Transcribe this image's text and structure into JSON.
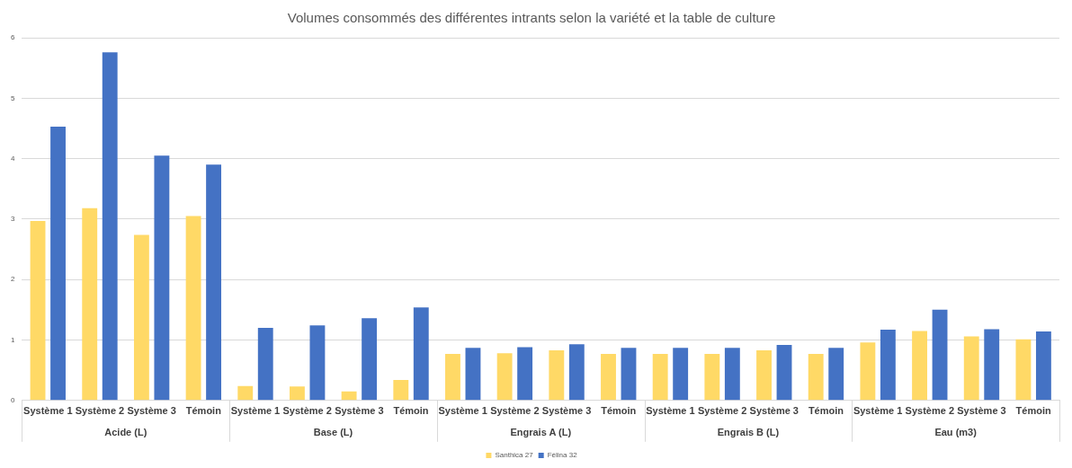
{
  "chart_data": {
    "type": "bar",
    "title": "Volumes consommés des différentes intrants selon la variété et la table de culture",
    "categories": [
      "Système 1",
      "Système 2",
      "Système 3",
      "Témoin",
      "Système 1",
      "Système 2",
      "Système 3",
      "Témoin",
      "Système 1",
      "Système 2",
      "Système 3",
      "Témoin",
      "Système 1",
      "Système 2",
      "Système 3",
      "Témoin",
      "Système 1",
      "Système 2",
      "Système 3",
      "Témoin"
    ],
    "series": [
      {
        "name": "Santhica 27",
        "color": "#ffd966",
        "values": [
          2.97,
          3.18,
          2.74,
          3.05,
          0.24,
          0.23,
          0.15,
          0.34,
          0.77,
          0.78,
          0.83,
          0.77,
          0.77,
          0.77,
          0.83,
          0.77,
          0.96,
          1.15,
          1.06,
          1.01
        ]
      },
      {
        "name": "Félina 32",
        "color": "#4472c4",
        "values": [
          4.53,
          5.76,
          4.05,
          3.9,
          1.2,
          1.24,
          1.36,
          1.54,
          0.87,
          0.88,
          0.93,
          0.87,
          0.87,
          0.87,
          0.92,
          0.87,
          1.17,
          1.5,
          1.18,
          1.14
        ]
      }
    ],
    "annotations": [
      "Acide (L)",
      "Base (L)",
      "Engrais A (L)",
      "Engrais B (L)",
      "Eau (m3)"
    ],
    "ylim": [
      0,
      6
    ],
    "yticks": [
      0,
      1,
      2,
      3,
      4,
      5,
      6
    ],
    "grid": "y",
    "legend": "bottom"
  }
}
